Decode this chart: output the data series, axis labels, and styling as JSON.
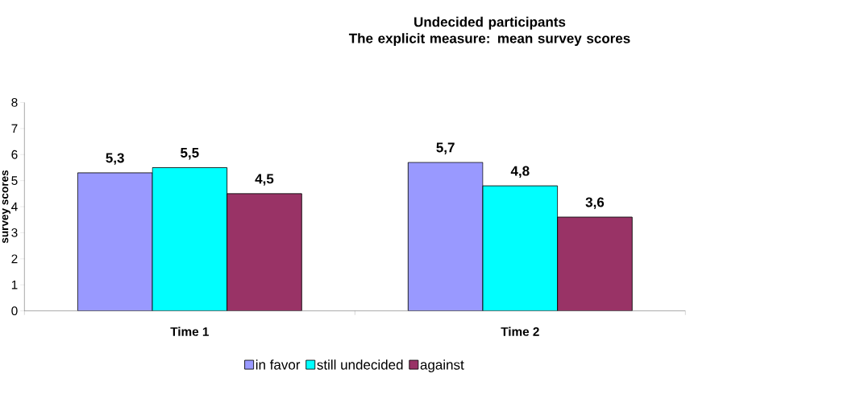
{
  "chart_data": {
    "type": "bar",
    "title": "Undecided participants\nThe explicit measure: mean survey scores",
    "ylabel": "survey scores",
    "categories": [
      "Time 1",
      "Time 2"
    ],
    "series": [
      {
        "name": "in favor",
        "color": "#9999ff",
        "values": [
          5.3,
          5.7
        ],
        "value_labels": [
          "5,3",
          "5,7"
        ]
      },
      {
        "name": "still undecided",
        "color": "#00ffff",
        "values": [
          5.5,
          4.8
        ],
        "value_labels": [
          "5,5",
          "4,8"
        ]
      },
      {
        "name": "against",
        "color": "#993366",
        "values": [
          4.5,
          3.6
        ],
        "value_labels": [
          "4,5",
          "3,6"
        ]
      }
    ],
    "ylim": [
      0,
      8
    ],
    "yticks": [
      0,
      1,
      2,
      3,
      4,
      5,
      6,
      7,
      8
    ],
    "legend": "bottom"
  }
}
